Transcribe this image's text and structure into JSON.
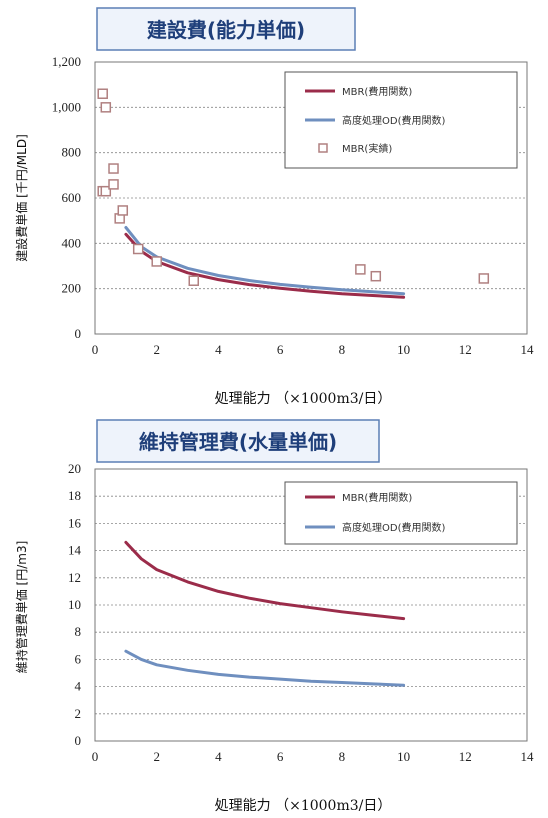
{
  "colors": {
    "mbr": "#9b2c4a",
    "od": "#6f8fbf",
    "marker": "#b08080",
    "title_text": "#1f3f7a",
    "title_bg": "#eef3fb",
    "title_border": "#5b7fb5",
    "grid": "#888888"
  },
  "chart_data": [
    {
      "type": "line",
      "title": "建設費(能力単価)",
      "xlabel": "処理能力 （×1000m3/日）",
      "ylabel": "建設費単価 [千円/MLD]",
      "xlim": [
        0,
        14
      ],
      "ylim": [
        0,
        1200
      ],
      "xticks": [
        "0",
        "2",
        "4",
        "6",
        "8",
        "10",
        "12",
        "14"
      ],
      "yticks": [
        "0",
        "200",
        "400",
        "600",
        "800",
        "1,000",
        "1,200"
      ],
      "grid": "horizontal-dotted",
      "legend_position": "top-right",
      "series": [
        {
          "name": "MBR(費用関数)",
          "kind": "line",
          "color": "#9b2c4a",
          "x": [
            1,
            1.5,
            2,
            3,
            4,
            5,
            6,
            7,
            8,
            9,
            10
          ],
          "y": [
            440,
            365,
            320,
            270,
            240,
            218,
            202,
            189,
            178,
            170,
            162
          ]
        },
        {
          "name": "高度処理OD(費用関数)",
          "kind": "line",
          "color": "#6f8fbf",
          "x": [
            1,
            1.5,
            2,
            3,
            4,
            5,
            6,
            7,
            8,
            9,
            10
          ],
          "y": [
            470,
            385,
            340,
            290,
            258,
            236,
            219,
            206,
            195,
            186,
            178
          ]
        },
        {
          "name": "MBR(実績)",
          "kind": "scatter",
          "color": "#b08080",
          "x": [
            0.25,
            0.35,
            0.25,
            0.35,
            0.6,
            0.6,
            0.8,
            0.9,
            1.4,
            2.0,
            3.2,
            8.6,
            9.1,
            12.6
          ],
          "y": [
            1060,
            1000,
            630,
            630,
            730,
            660,
            510,
            545,
            375,
            320,
            235,
            285,
            255,
            245
          ]
        }
      ]
    },
    {
      "type": "line",
      "title": "維持管理費(水量単価)",
      "xlabel": "処理能力 （×1000m3/日）",
      "ylabel": "維持管理費単価 [円/m3]",
      "xlim": [
        0,
        14
      ],
      "ylim": [
        0,
        20
      ],
      "xticks": [
        "0",
        "2",
        "4",
        "6",
        "8",
        "10",
        "12",
        "14"
      ],
      "yticks": [
        "0",
        "2",
        "4",
        "6",
        "8",
        "10",
        "12",
        "14",
        "16",
        "18",
        "20"
      ],
      "grid": "horizontal-dotted",
      "legend_position": "top-right",
      "series": [
        {
          "name": "MBR(費用関数)",
          "kind": "line",
          "color": "#9b2c4a",
          "x": [
            1,
            1.5,
            2,
            3,
            4,
            5,
            6,
            7,
            8,
            9,
            10
          ],
          "y": [
            14.6,
            13.4,
            12.6,
            11.7,
            11.0,
            10.5,
            10.1,
            9.8,
            9.5,
            9.25,
            9.0
          ]
        },
        {
          "name": "高度処理OD(費用関数)",
          "kind": "line",
          "color": "#6f8fbf",
          "x": [
            1,
            1.5,
            2,
            3,
            4,
            5,
            6,
            7,
            8,
            9,
            10
          ],
          "y": [
            6.6,
            6.0,
            5.6,
            5.2,
            4.9,
            4.7,
            4.55,
            4.4,
            4.3,
            4.2,
            4.1
          ]
        }
      ]
    }
  ]
}
